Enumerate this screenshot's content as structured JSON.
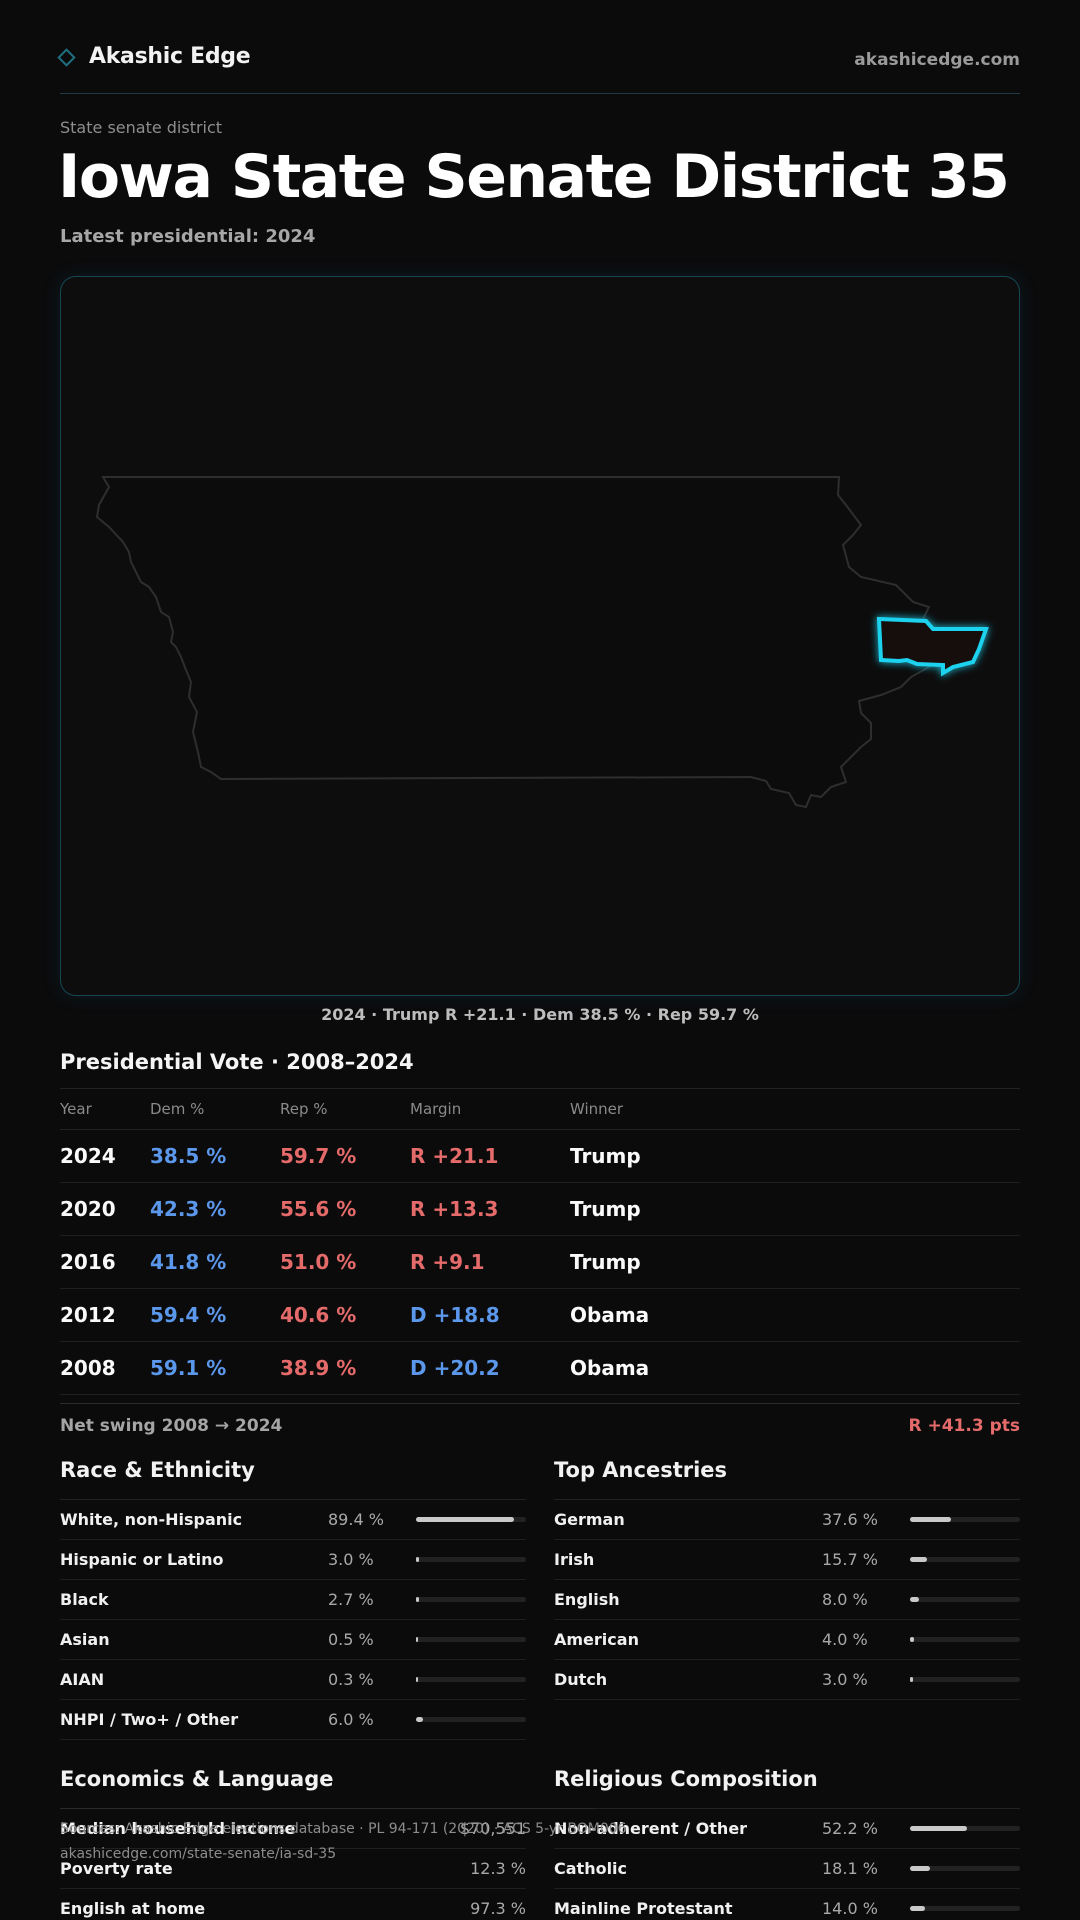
{
  "header": {
    "brand": "Akashic Edge",
    "site": "akashicedge.com"
  },
  "page": {
    "kicker": "State senate district",
    "title": "Iowa State Senate District 35",
    "subtitle": "Latest presidential: 2024"
  },
  "map": {
    "caption": "2024 · Trump R +21.1 · Dem 38.5 % · Rep 59.7 %",
    "highlight_color": "#1fd2ee"
  },
  "presidential": {
    "title": "Presidential Vote · 2008–2024",
    "headers": [
      "Year",
      "Dem %",
      "Rep %",
      "Margin",
      "Winner"
    ],
    "rows": [
      {
        "year": "2024",
        "dem": "38.5 %",
        "rep": "59.7 %",
        "margin": "R +21.1",
        "party": "R",
        "winner": "Trump"
      },
      {
        "year": "2020",
        "dem": "42.3 %",
        "rep": "55.6 %",
        "margin": "R +13.3",
        "party": "R",
        "winner": "Trump"
      },
      {
        "year": "2016",
        "dem": "41.8 %",
        "rep": "51.0 %",
        "margin": "R +9.1",
        "party": "R",
        "winner": "Trump"
      },
      {
        "year": "2012",
        "dem": "59.4 %",
        "rep": "40.6 %",
        "margin": "D +18.8",
        "party": "D",
        "winner": "Obama"
      },
      {
        "year": "2008",
        "dem": "59.1 %",
        "rep": "38.9 %",
        "margin": "D +20.2",
        "party": "D",
        "winner": "Obama"
      }
    ],
    "swing_label": "Net swing 2008 → 2024",
    "swing_value": "R +41.3 pts"
  },
  "race": {
    "title": "Race & Ethnicity",
    "rows": [
      {
        "label": "White, non-Hispanic",
        "value": "89.4 %",
        "pct": 89.4
      },
      {
        "label": "Hispanic or Latino",
        "value": "3.0 %",
        "pct": 3.0
      },
      {
        "label": "Black",
        "value": "2.7 %",
        "pct": 2.7
      },
      {
        "label": "Asian",
        "value": "0.5 %",
        "pct": 0.5
      },
      {
        "label": "AIAN",
        "value": "0.3 %",
        "pct": 0.3
      },
      {
        "label": "NHPI / Two+ / Other",
        "value": "6.0 %",
        "pct": 6.0
      }
    ]
  },
  "ancestry": {
    "title": "Top Ancestries",
    "rows": [
      {
        "label": "German",
        "value": "37.6 %",
        "pct": 37.6
      },
      {
        "label": "Irish",
        "value": "15.7 %",
        "pct": 15.7
      },
      {
        "label": "English",
        "value": "8.0 %",
        "pct": 8.0
      },
      {
        "label": "American",
        "value": "4.0 %",
        "pct": 4.0
      },
      {
        "label": "Dutch",
        "value": "3.0 %",
        "pct": 3.0
      }
    ]
  },
  "economics": {
    "title": "Economics & Language",
    "rows": [
      {
        "label": "Median household income",
        "value": "$70,551"
      },
      {
        "label": "Poverty rate",
        "value": "12.3 %"
      },
      {
        "label": "English at home",
        "value": "97.3 %"
      }
    ]
  },
  "religion": {
    "title": "Religious Composition",
    "rows": [
      {
        "label": "Non-adherent / Other",
        "value": "52.2 %",
        "pct": 52.2
      },
      {
        "label": "Catholic",
        "value": "18.1 %",
        "pct": 18.1
      },
      {
        "label": "Mainline Protestant",
        "value": "14.0 %",
        "pct": 14.0
      }
    ]
  },
  "footer": {
    "sources": "Sources: Akashic Edge elections database · PL 94-171 (2020) · ACS 5-yr BOM006",
    "url": "akashicedge.com/state-senate/ia-sd-35"
  }
}
